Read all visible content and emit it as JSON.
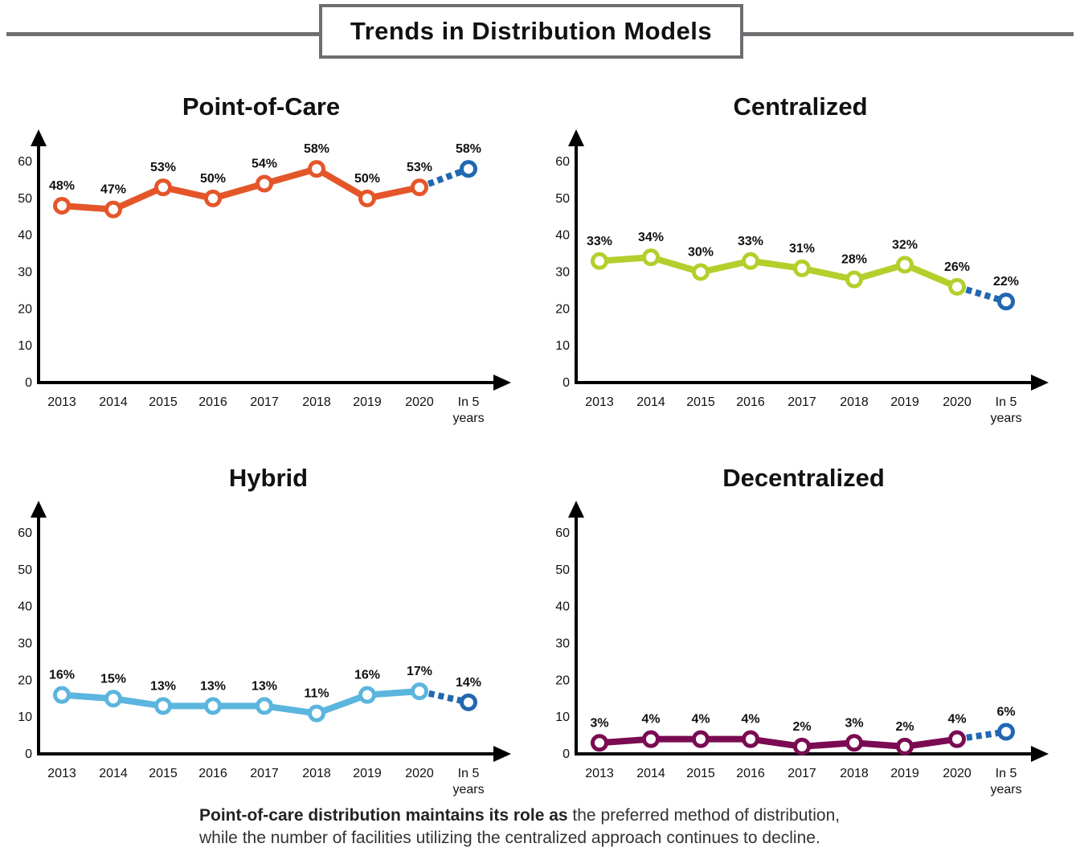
{
  "header": {
    "title": "Trends in Distribution Models"
  },
  "caption": {
    "bold": "Point-of-care distribution maintains its role as",
    "line1_rest": " the preferred method of distribution,",
    "line2": "while the number of facilities utilizing the centralized approach continues to decline."
  },
  "colors": {
    "forecast": "#2168b0"
  },
  "chart_data": [
    {
      "type": "line",
      "title": "Point-of-Care",
      "color": "#e4562a",
      "categories": [
        "2013",
        "2014",
        "2015",
        "2016",
        "2017",
        "2018",
        "2019",
        "2020",
        "In 5 years"
      ],
      "values": [
        48,
        47,
        53,
        50,
        54,
        58,
        50,
        53,
        58
      ],
      "labels": [
        "48%",
        "47%",
        "53%",
        "50%",
        "54%",
        "58%",
        "50%",
        "53%",
        "58%"
      ],
      "yticks": [
        0,
        10,
        20,
        30,
        40,
        50,
        60
      ],
      "ylim": [
        0,
        60
      ],
      "forecast_category": "In 5 years"
    },
    {
      "type": "line",
      "title": "Centralized",
      "color": "#b3cf2c",
      "categories": [
        "2013",
        "2014",
        "2015",
        "2016",
        "2017",
        "2018",
        "2019",
        "2020",
        "In 5 years"
      ],
      "values": [
        33,
        34,
        30,
        33,
        31,
        28,
        32,
        26,
        22
      ],
      "labels": [
        "33%",
        "34%",
        "30%",
        "33%",
        "31%",
        "28%",
        "32%",
        "26%",
        "22%"
      ],
      "yticks": [
        0,
        10,
        20,
        30,
        40,
        50,
        60
      ],
      "ylim": [
        0,
        60
      ],
      "forecast_category": "In 5 years"
    },
    {
      "type": "line",
      "title": "Hybrid",
      "color": "#5bb5de",
      "categories": [
        "2013",
        "2014",
        "2015",
        "2016",
        "2017",
        "2018",
        "2019",
        "2020",
        "In 5 years"
      ],
      "values": [
        16,
        15,
        13,
        13,
        13,
        11,
        16,
        17,
        14
      ],
      "labels": [
        "16%",
        "15%",
        "13%",
        "13%",
        "13%",
        "11%",
        "16%",
        "17%",
        "14%"
      ],
      "yticks": [
        0,
        10,
        20,
        30,
        40,
        50,
        60
      ],
      "ylim": [
        0,
        60
      ],
      "forecast_category": "In 5 years"
    },
    {
      "type": "line",
      "title": "Decentralized",
      "color": "#7a0b52",
      "categories": [
        "2013",
        "2014",
        "2015",
        "2016",
        "2017",
        "2018",
        "2019",
        "2020",
        "In 5 years"
      ],
      "values": [
        3,
        4,
        4,
        4,
        2,
        3,
        2,
        4,
        6
      ],
      "labels": [
        "3%",
        "4%",
        "4%",
        "4%",
        "2%",
        "3%",
        "2%",
        "4%",
        "6%"
      ],
      "yticks": [
        0,
        10,
        20,
        30,
        40,
        50,
        60
      ],
      "ylim": [
        0,
        60
      ],
      "forecast_category": "In 5 years"
    }
  ]
}
